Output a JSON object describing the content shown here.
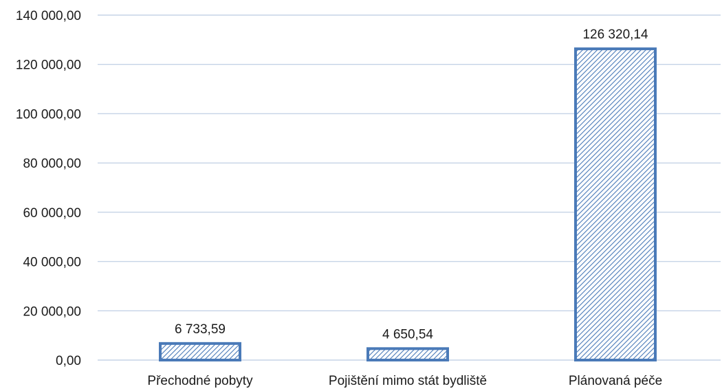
{
  "chart_data": {
    "type": "bar",
    "title": "",
    "xlabel": "",
    "ylabel": "",
    "categories": [
      "Přechodné pobyty",
      "Pojištění mimo stát bydliště",
      "Plánovaná péče"
    ],
    "values": [
      6733.59,
      4650.54,
      126320.14
    ],
    "value_labels": [
      "6 733,59",
      "4 650,54",
      "126 320,14"
    ],
    "ylim": [
      0,
      140000
    ],
    "yticks": [
      0,
      20000,
      40000,
      60000,
      80000,
      100000,
      120000,
      140000
    ],
    "ytick_labels": [
      "0,00",
      "20 000,00",
      "40 000,00",
      "60 000,00",
      "80 000,00",
      "100 000,00",
      "120 000,00",
      "140 000,00"
    ],
    "grid": true,
    "legend": "none",
    "colors": {
      "bar_stroke": "#4a7ab8",
      "bar_hatch": "#4a7ab8",
      "bar_fill": "#ffffff",
      "grid": "#c5d3e6"
    },
    "bar_pattern": "diagonal-hatch"
  }
}
